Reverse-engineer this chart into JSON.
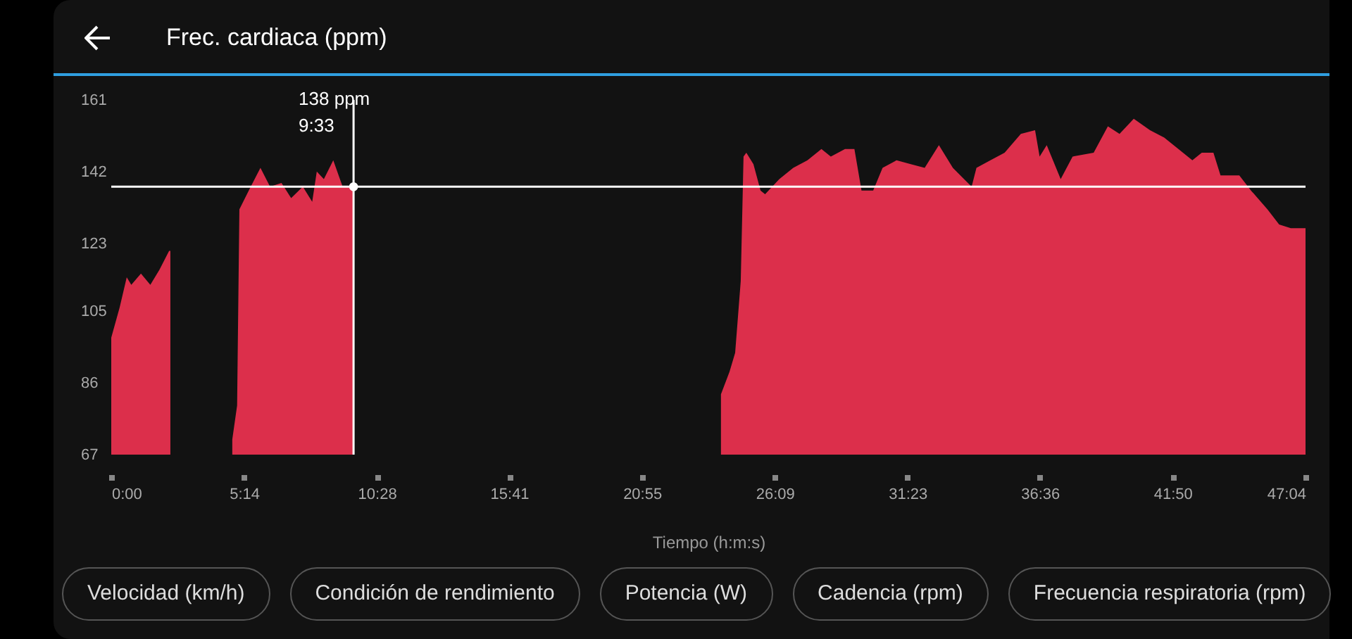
{
  "chart_data": {
    "type": "area",
    "title": "Frec. cardiaca (ppm)",
    "xlabel": "Tiempo (h:m:s)",
    "x": [
      0,
      0.33,
      0.61,
      0.79,
      1.17,
      1.54,
      1.9,
      2.28,
      2.33,
      3.5,
      4.77,
      4.96,
      5.05,
      5.42,
      5.88,
      6.26,
      6.71,
      7.09,
      7.55,
      7.92,
      8.1,
      8.38,
      8.75,
      9.12,
      9.55,
      17,
      24.03,
      24.37,
      24.59,
      24.81,
      24.92,
      25.03,
      25.31,
      25.59,
      25.77,
      26.33,
      26.88,
      27.44,
      27.99,
      28.36,
      28.92,
      29.29,
      29.57,
      30.03,
      30.4,
      30.95,
      31.51,
      32.06,
      32.62,
      33.17,
      33.91,
      34.1,
      34.65,
      35.21,
      35.85,
      36.41,
      36.59,
      36.87,
      37.42,
      37.89,
      38.72,
      39.28,
      39.74,
      40.3,
      40.94,
      41.5,
      42.06,
      42.61,
      42.98,
      43.44,
      43.72,
      44.46,
      44.92,
      45.57,
      46.03,
      46.49,
      47.07
    ],
    "series": [
      {
        "color": "#dc2f4b",
        "values": [
          98,
          106,
          114,
          112,
          115,
          112,
          116,
          121,
          121,
          null,
          71,
          80,
          132,
          137,
          143,
          138,
          139,
          135,
          138,
          134,
          142,
          140,
          145,
          138,
          138,
          null,
          83,
          89,
          94,
          113,
          146,
          147,
          144,
          137,
          136,
          140,
          143,
          145,
          148,
          146,
          148,
          148,
          137,
          137,
          143,
          145,
          144,
          143,
          149,
          143,
          138,
          143,
          145,
          147,
          152,
          153,
          146,
          149,
          140,
          146,
          147,
          154,
          152,
          156,
          153,
          151,
          148,
          145,
          147,
          147,
          141,
          141,
          137,
          132,
          128,
          127,
          127
        ]
      }
    ],
    "xlim": [
      0,
      47.07
    ],
    "ylim": [
      67,
      161
    ],
    "xticks": [
      {
        "value": 0,
        "label": "0:00"
      },
      {
        "value": 5.233,
        "label": "5:14"
      },
      {
        "value": 10.467,
        "label": "10:28"
      },
      {
        "value": 15.683,
        "label": "15:41"
      },
      {
        "value": 20.917,
        "label": "20:55"
      },
      {
        "value": 26.15,
        "label": "26:09"
      },
      {
        "value": 31.383,
        "label": "31:23"
      },
      {
        "value": 36.6,
        "label": "36:36"
      },
      {
        "value": 41.833,
        "label": "41:50"
      },
      {
        "value": 47.067,
        "label": "47:04"
      }
    ],
    "yticks": [
      67,
      86,
      105,
      123,
      142,
      161
    ],
    "ref_lines": [
      {
        "axis": "y",
        "value": 138,
        "color": "#ffffff"
      },
      {
        "axis": "x",
        "value": 9.55,
        "color": "#ffffff"
      }
    ],
    "annotations": [
      {
        "text": "138 ppm\n9:33",
        "x": 9.55,
        "y": 138
      },
      "Velocidad (km/h)",
      "Condición de rendimiento",
      "Potencia (W)",
      "Cadencia (rpm)",
      "Frecuencia respiratoria (rpm)"
    ]
  }
}
